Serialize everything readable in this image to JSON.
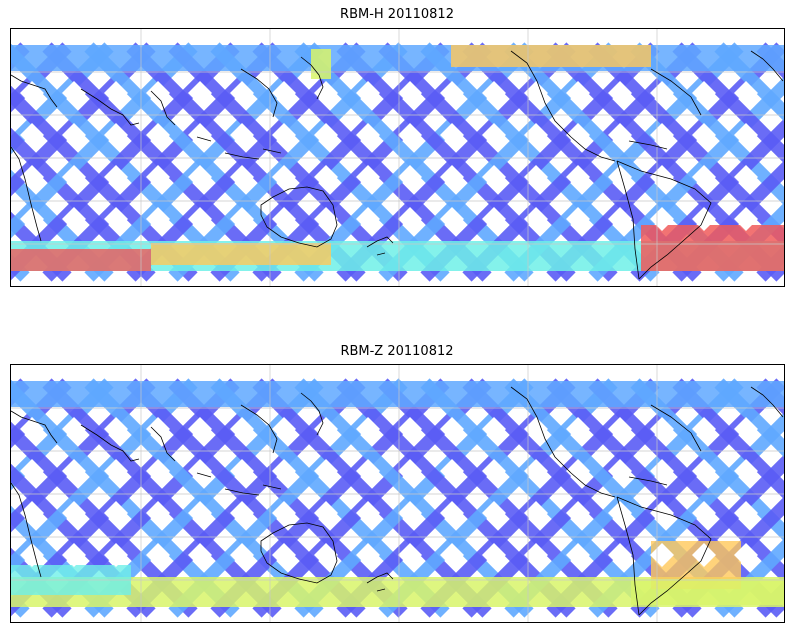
{
  "panels": [
    {
      "title": "RBM-H 20110812",
      "product": "RBM-H"
    },
    {
      "title": "RBM-Z 20110812",
      "product": "RBM-Z"
    }
  ],
  "colors": {
    "low": "#5a5cf5",
    "low_mid": "#5fa8ff",
    "mid": "#6ff0e8",
    "mid_high": "#d8f56a",
    "high": "#ffc85a",
    "max": "#f05a5a",
    "coastline": "#000000",
    "grid": "#c8c8c8"
  },
  "projection": "equirectangular, centered ~150E",
  "grid": true
}
